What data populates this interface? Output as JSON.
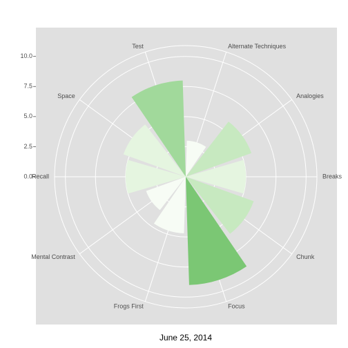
{
  "chart_data": {
    "type": "polar_bar",
    "xlabel": "June 25, 2014",
    "categories": [
      "Alternate Techniques",
      "Analogies",
      "Breaks",
      "Chunk",
      "Focus",
      "Frogs First",
      "Mental Contrast",
      "Recall",
      "Space",
      "Test"
    ],
    "values": [
      3,
      5.8,
      5,
      6,
      9,
      4.7,
      3.5,
      5,
      5.5,
      8
    ],
    "colors": [
      "#f7fcf5",
      "#c7e9c0",
      "#e5f5e0",
      "#c7e9c0",
      "#7bc774",
      "#f7fcf5",
      "#f7fcf5",
      "#e5f5e0",
      "#e5f5e0",
      "#a1d99b"
    ],
    "ylim": [
      0,
      10.9
    ],
    "yticks": [
      {
        "value": 0,
        "label": "0.0"
      },
      {
        "value": 2.5,
        "label": "2.5"
      },
      {
        "value": 5,
        "label": "5.0"
      },
      {
        "value": 7.5,
        "label": "7.5"
      },
      {
        "value": 10,
        "label": "10.0"
      }
    ],
    "grid": true
  }
}
